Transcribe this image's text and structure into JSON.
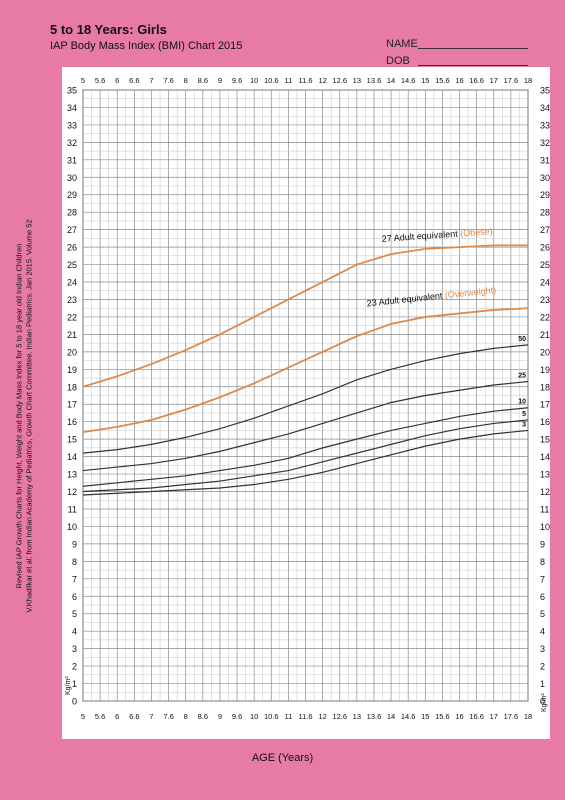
{
  "header": {
    "title": "5 to 18 Years: Girls",
    "subtitle": "IAP Body Mass Index (BMI) Chart 2015",
    "name_label": "NAME",
    "dob_label": "DOB"
  },
  "sidebar": {
    "source_line1": "Revised IAP Growth Charts for Height, Weight and Body Mass Index for 5 to 18 year old Indian Children",
    "source_line2": "V.Khadilkar et al; from Indian Academy of Pediatrics, Growth Chart Committee. Indian Pediatrics. Jan 2015. Volume 52"
  },
  "chart_data": {
    "type": "line",
    "title": "5 to 18 Years: Girls",
    "subtitle": "IAP Body Mass Index (BMI) Chart 2015",
    "xlabel": "AGE (Years)",
    "ylabel": "Kg/m²",
    "xlim": [
      5,
      18
    ],
    "ylim": [
      0,
      35
    ],
    "grid": true,
    "x_ticks": [
      "5",
      "5.6",
      "6",
      "6.6",
      "7",
      "7.6",
      "8",
      "8.6",
      "9",
      "9.6",
      "10",
      "10.6",
      "11",
      "11.6",
      "12",
      "12.6",
      "13",
      "13.6",
      "14",
      "14.6",
      "15",
      "15.6",
      "16",
      "16.6",
      "17",
      "17.6",
      "18"
    ],
    "y_ticks": [
      0,
      1,
      2,
      3,
      4,
      5,
      6,
      7,
      8,
      9,
      10,
      11,
      12,
      13,
      14,
      15,
      16,
      17,
      18,
      19,
      20,
      21,
      22,
      23,
      24,
      25,
      26,
      27,
      28,
      29,
      30,
      31,
      32,
      33,
      34,
      35
    ],
    "x": [
      5,
      6,
      7,
      8,
      9,
      10,
      11,
      12,
      13,
      14,
      15,
      16,
      17,
      18
    ],
    "series": [
      {
        "name": "3",
        "color": "#333333",
        "values": [
          11.8,
          11.9,
          12.0,
          12.1,
          12.2,
          12.4,
          12.7,
          13.1,
          13.6,
          14.1,
          14.6,
          15.0,
          15.3,
          15.5
        ]
      },
      {
        "name": "5",
        "color": "#333333",
        "values": [
          12.0,
          12.1,
          12.2,
          12.4,
          12.6,
          12.9,
          13.2,
          13.7,
          14.2,
          14.7,
          15.2,
          15.6,
          15.9,
          16.1
        ]
      },
      {
        "name": "10",
        "color": "#333333",
        "values": [
          12.3,
          12.5,
          12.7,
          12.9,
          13.2,
          13.5,
          13.9,
          14.5,
          15.0,
          15.5,
          15.9,
          16.3,
          16.6,
          16.8
        ]
      },
      {
        "name": "25",
        "color": "#333333",
        "values": [
          13.2,
          13.4,
          13.6,
          13.9,
          14.3,
          14.8,
          15.3,
          15.9,
          16.5,
          17.1,
          17.5,
          17.8,
          18.1,
          18.3
        ]
      },
      {
        "name": "50",
        "color": "#333333",
        "values": [
          14.2,
          14.4,
          14.7,
          15.1,
          15.6,
          16.2,
          16.9,
          17.6,
          18.4,
          19.0,
          19.5,
          19.9,
          20.2,
          20.4
        ]
      },
      {
        "name": "23 Adult equivalent",
        "annotation": "(Overweight)",
        "color": "#e08a4a",
        "values": [
          15.4,
          15.7,
          16.1,
          16.7,
          17.4,
          18.2,
          19.1,
          20.0,
          20.9,
          21.6,
          22.0,
          22.2,
          22.4,
          22.5
        ]
      },
      {
        "name": "27 Adult equivalent",
        "annotation": "(Obese)",
        "color": "#e08a4a",
        "values": [
          18.0,
          18.6,
          19.3,
          20.1,
          21.0,
          22.0,
          23.0,
          24.0,
          25.0,
          25.6,
          25.9,
          26.0,
          26.1,
          26.1
        ]
      }
    ]
  }
}
